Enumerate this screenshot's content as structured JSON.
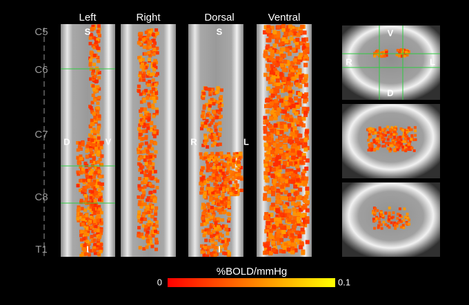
{
  "panels": [
    {
      "title": "Left"
    },
    {
      "title": "Right"
    },
    {
      "title": "Dorsal"
    },
    {
      "title": "Ventral"
    }
  ],
  "levels": [
    "C5",
    "C6",
    "C7",
    "C8",
    "T1"
  ],
  "orientation": {
    "left_panel": {
      "top": "S",
      "bottom": "I",
      "left": "D",
      "right": "V"
    },
    "dorsal_panel": {
      "top": "S",
      "bottom": "I",
      "left": "R",
      "right": "L"
    },
    "axial_panel": {
      "top": "V",
      "left": "R",
      "right": "L",
      "bottom": "D"
    }
  },
  "colorbar": {
    "title": "%BOLD/mmHg",
    "min": 0,
    "max": 0.1
  }
}
